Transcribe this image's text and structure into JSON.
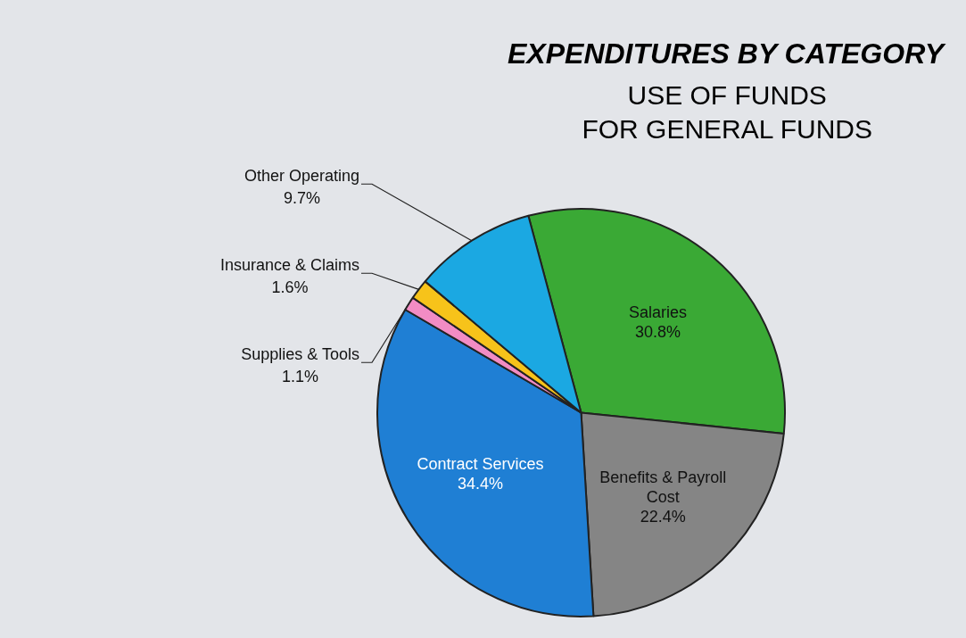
{
  "chart_data": {
    "type": "pie",
    "title": "EXPENDITURES BY CATEGORY",
    "subtitle": "USE OF FUNDS\nFOR GENERAL FUNDS",
    "categories": [
      "Salaries",
      "Benefits & Payroll Cost",
      "Contract Services",
      "Supplies & Tools",
      "Insurance & Claims",
      "Other Operating"
    ],
    "values": [
      30.8,
      22.4,
      34.4,
      1.1,
      1.6,
      9.7
    ],
    "colors": [
      "#3aa935",
      "#858585",
      "#1f7fd4",
      "#f28cc4",
      "#f7c31a",
      "#1ba8e2"
    ],
    "value_labels": [
      "30.8%",
      "22.4%",
      "34.4%",
      "1.1%",
      "1.6%",
      "9.7%"
    ]
  }
}
